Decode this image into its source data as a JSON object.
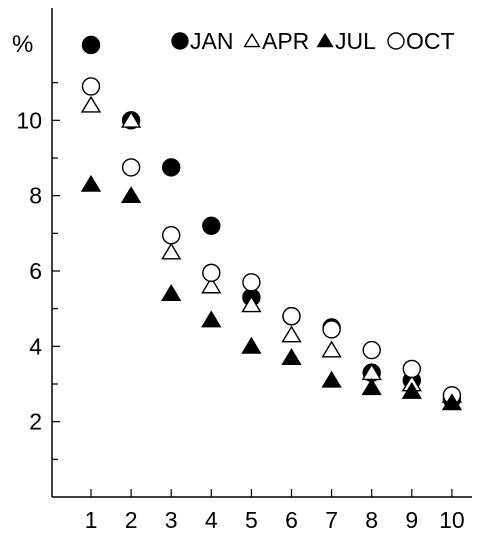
{
  "chart_data": {
    "type": "scatter",
    "ylabel": "%",
    "xlabel": "",
    "title": "",
    "x": [
      1,
      2,
      3,
      4,
      5,
      6,
      7,
      8,
      9,
      10
    ],
    "x_tick_labels": [
      "1",
      "2",
      "3",
      "4",
      "5",
      "6",
      "7",
      "8",
      "9",
      "10"
    ],
    "y_ticks": [
      2,
      4,
      6,
      8,
      10
    ],
    "y_tick_labels": [
      "2",
      "4",
      "6",
      "8",
      "10"
    ],
    "ylim": [
      0,
      12
    ],
    "xlim": [
      0,
      10.5
    ],
    "grid": false,
    "legend_position": "top",
    "series": [
      {
        "name": "JAN",
        "marker": "filled-circle",
        "values": [
          12.0,
          10.0,
          8.75,
          7.2,
          5.3,
          4.8,
          4.5,
          3.3,
          3.1,
          2.6
        ]
      },
      {
        "name": "APR",
        "marker": "open-triangle",
        "values": [
          10.4,
          10.0,
          6.5,
          5.6,
          5.1,
          4.3,
          3.9,
          3.3,
          3.0,
          2.7
        ]
      },
      {
        "name": "JUL",
        "marker": "filled-triangle",
        "values": [
          8.3,
          8.0,
          5.4,
          4.7,
          4.0,
          3.7,
          3.1,
          2.9,
          2.8,
          2.5
        ]
      },
      {
        "name": "OCT",
        "marker": "open-circle",
        "values": [
          10.9,
          8.75,
          6.95,
          5.95,
          5.7,
          4.8,
          4.45,
          3.9,
          3.4,
          2.7
        ]
      }
    ],
    "colors": {
      "marker": "#000000",
      "axis": "#000000",
      "background": "#ffffff"
    }
  }
}
